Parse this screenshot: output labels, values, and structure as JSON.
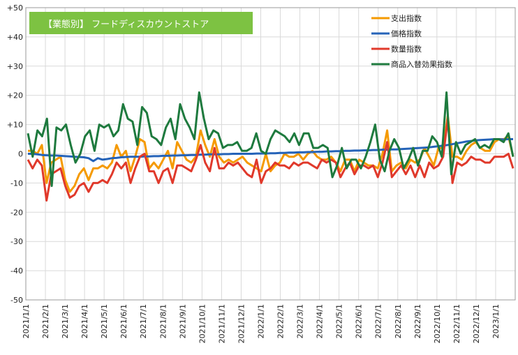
{
  "chart_data": {
    "type": "line",
    "title": "【業態別】 フードディスカウントストア",
    "ylim": [
      -50,
      50
    ],
    "y_ticks": [
      "+50",
      "+40",
      "+30",
      "+20",
      "+10",
      "0",
      "-10",
      "-20",
      "-30",
      "-40",
      "-50"
    ],
    "y_tick_values": [
      50,
      40,
      30,
      20,
      10,
      0,
      -10,
      -20,
      -30,
      -40,
      -50
    ],
    "x_tick_labels": [
      "2021/1/1",
      "2021/2/1",
      "2021/3/1",
      "2021/4/1",
      "2021/5/1",
      "2021/6/1",
      "2021/7/1",
      "2021/8/1",
      "2021/9/1",
      "2021/10/1",
      "2021/11/1",
      "2021/12/1",
      "2022/1/1",
      "2022/2/1",
      "2022/3/1",
      "2022/4/1",
      "2022/5/1",
      "2022/6/1",
      "2022/7/1",
      "2022/8/1",
      "2022/9/1",
      "2022/10/1",
      "2022/11/1",
      "2022/12/1",
      "2023/1/1"
    ],
    "grid": true,
    "legend_position": "top-right",
    "series": [
      {
        "name": "支出指数",
        "color": "#F59A00",
        "values": [
          1,
          1,
          0,
          3,
          -10,
          -3,
          -2,
          -1,
          -9,
          -13,
          -11,
          -7,
          -5,
          -9,
          -5,
          -5,
          -4,
          -5,
          -3,
          3,
          -1,
          1,
          -6,
          -1,
          5,
          4,
          -5,
          -3,
          -5,
          -2,
          1,
          -5,
          4,
          1,
          -2,
          -3,
          -1,
          8,
          3,
          -1,
          5,
          -1,
          -3,
          -2,
          -3,
          -2,
          -1,
          -3,
          -4,
          -5,
          -6,
          0,
          -6,
          -4,
          -3,
          0,
          -1,
          -1,
          0,
          -2,
          0,
          1,
          -1,
          -2,
          -2,
          -1,
          -3,
          -6,
          -2,
          -2,
          -6,
          -2,
          -3,
          -4,
          -4,
          -5,
          0,
          8,
          -6,
          -4,
          -3,
          -5,
          -2,
          -3,
          -2,
          2,
          -1,
          -4,
          2,
          2,
          13,
          -1,
          -1,
          -2,
          1,
          3,
          4,
          2,
          1,
          1,
          4,
          5,
          5,
          6,
          -1
        ],
        "markers": []
      },
      {
        "name": "価格指数",
        "color": "#2563B8",
        "values": [
          0,
          0,
          -0.2,
          -0.4,
          -0.5,
          -0.6,
          -0.6,
          -0.7,
          -0.8,
          -0.9,
          -1,
          -1.1,
          -1.2,
          -1.5,
          -2.5,
          -1.5,
          -2,
          -1.8,
          -1.5,
          -1.4,
          -1.2,
          -1.1,
          -1,
          -1,
          -1,
          -0.9,
          -0.9,
          -0.8,
          -0.8,
          -0.7,
          -0.7,
          -0.6,
          -0.6,
          -0.5,
          -0.5,
          -0.4,
          -0.4,
          -0.3,
          -0.3,
          -0.2,
          -0.2,
          -0.2,
          -0.1,
          -0.1,
          0,
          0,
          0,
          0,
          0,
          0.1,
          0.1,
          0.1,
          0.2,
          0.2,
          0.3,
          0.3,
          0.4,
          0.4,
          0.5,
          0.5,
          0.6,
          0.6,
          0.7,
          0.7,
          0.8,
          0.8,
          0.9,
          0.9,
          1,
          1,
          1.1,
          1.1,
          1.2,
          1.2,
          1.3,
          1.3,
          1.4,
          1.4,
          1.5,
          1.5,
          1.6,
          1.7,
          1.8,
          1.9,
          2,
          2.1,
          2.2,
          2.4,
          2.6,
          2.8,
          3,
          3.3,
          3.6,
          3.9,
          4.2,
          4.4,
          4.6,
          4.7,
          4.8,
          4.9,
          5,
          5,
          4.9,
          5,
          5
        ],
        "markers": []
      },
      {
        "name": "数量指数",
        "color": "#E0392B",
        "values": [
          -2,
          -5,
          -2,
          -4,
          -16,
          -7,
          -6,
          -5,
          -11,
          -15,
          -14,
          -11,
          -10,
          -13,
          -10,
          -10,
          -9,
          -10,
          -7,
          -3,
          -5,
          -3,
          -10,
          -5,
          -1,
          0,
          -6,
          -6,
          -10,
          -6,
          -5,
          -10,
          -4,
          -4,
          -5,
          -6,
          -2,
          3,
          -3,
          -6,
          2,
          -5,
          -5,
          -3,
          -4,
          -3,
          -5,
          -7,
          -8,
          -2,
          -10,
          -6,
          -5,
          -3,
          -4,
          -4,
          -5,
          -3,
          -4,
          -3,
          -3,
          -4,
          -5,
          -2,
          -3,
          -2,
          -3,
          -8,
          -5,
          -3,
          -7,
          -4,
          -4,
          -5,
          -4,
          -8,
          -3,
          4,
          -8,
          -6,
          -4,
          -7,
          -4,
          -8,
          -4,
          -8,
          -3,
          -5,
          -4,
          -1,
          12,
          -10,
          -3,
          -4,
          -3,
          -1,
          -2,
          -2,
          -3,
          -3,
          -1,
          -1,
          -1,
          0,
          -5
        ],
        "markers": []
      },
      {
        "name": "商品入替効果指数",
        "color": "#1E7A3E",
        "values": [
          7,
          -1,
          8,
          6,
          12,
          -11,
          9,
          8,
          10,
          3,
          -3,
          0,
          6,
          8,
          1,
          10,
          9,
          10,
          6,
          8,
          17,
          12,
          11,
          3,
          16,
          14,
          6,
          5,
          3,
          9,
          12,
          5,
          17,
          12,
          9,
          5,
          21,
          12,
          5,
          8,
          7,
          2,
          3,
          3,
          4,
          1,
          1,
          2,
          7,
          1,
          0,
          5,
          8,
          7,
          6,
          4,
          7,
          3,
          7,
          7,
          2,
          2,
          3,
          2,
          -8,
          -4,
          2,
          -5,
          -2,
          -2,
          -5,
          -1,
          4,
          10,
          -2,
          -6,
          1,
          5,
          2,
          -5,
          -2,
          2,
          -4,
          1,
          1,
          6,
          4,
          -1,
          21,
          -7,
          4,
          0,
          3,
          4,
          5,
          2,
          3,
          2,
          5,
          5,
          4,
          7,
          -1
        ],
        "markers": []
      }
    ]
  }
}
